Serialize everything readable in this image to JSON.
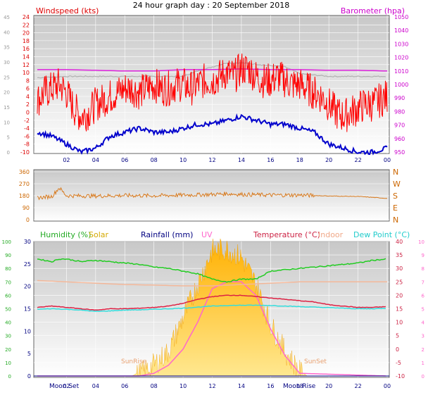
{
  "title": "24 hour graph day : 20 September 2018",
  "colors": {
    "windspeed": "#ff0000",
    "gust_avg": "#0000cc",
    "barometer": "#dd22dd",
    "bar_grey": "#b0b0b0",
    "direction": "#d87a1e",
    "humidity": "#22cc22",
    "solar": "#f0c000",
    "rainfall": "#000080",
    "uv": "#ff66cc",
    "temperature": "#dd2244",
    "indoor": "#f4b89a",
    "dewpoint": "#33dddd",
    "axis_left_wind": "#dd0000",
    "axis_right_baro": "#cc00cc"
  },
  "chart_data": [
    {
      "type": "line",
      "panel": "wind",
      "title": "",
      "legend": [
        "Windspeed (kts)",
        "Barometer (hpa)"
      ],
      "x_ticks": [
        "02",
        "04",
        "06",
        "08",
        "10",
        "12",
        "14",
        "16",
        "18",
        "20",
        "22",
        "00"
      ],
      "xlim": [
        0,
        24
      ],
      "y_left_outer_ticks": [
        "0",
        "5",
        "10",
        "15",
        "20",
        "25",
        "30",
        "35",
        "40",
        "45"
      ],
      "y_left_outer_lim": [
        0,
        45
      ],
      "y_left_ticks": [
        "-10",
        "-8",
        "-6",
        "-4",
        "-2",
        "0",
        "2",
        "4",
        "6",
        "8",
        "10",
        "12",
        "14",
        "16",
        "18",
        "20",
        "22",
        "24"
      ],
      "y_left_lim": [
        -10,
        24
      ],
      "y_right_ticks": [
        "950",
        "960",
        "970",
        "980",
        "990",
        "1000",
        "1010",
        "1020",
        "1030",
        "1040",
        "1050"
      ],
      "y_right_lim": [
        950,
        1050
      ],
      "series": [
        {
          "name": "Windspeed (kts)",
          "x": [
            0,
            0.5,
            1,
            1.5,
            2,
            2.5,
            3,
            3.5,
            4,
            4.5,
            5,
            5.5,
            6,
            6.5,
            7,
            7.5,
            8,
            8.5,
            9,
            9.5,
            10,
            10.5,
            11,
            11.5,
            12,
            12.5,
            13,
            13.5,
            14,
            14.5,
            15,
            15.5,
            16,
            16.5,
            17,
            17.5,
            18,
            18.5,
            19,
            19.5,
            20,
            20.5,
            21,
            21.5,
            22,
            22.5,
            23,
            23.5,
            24
          ],
          "values": [
            3,
            5,
            6,
            7,
            5,
            1,
            -1,
            0,
            2,
            3,
            4,
            5,
            6,
            6,
            5,
            6,
            7,
            6,
            6,
            7,
            7,
            6,
            7,
            8,
            8,
            9,
            10,
            9,
            11,
            11,
            9,
            8,
            8,
            9,
            8,
            7,
            7,
            6,
            5,
            4,
            2,
            0,
            -1,
            0,
            1,
            2,
            2,
            3,
            4
          ]
        },
        {
          "name": "Avg",
          "x": [
            0,
            1,
            2,
            3,
            4,
            5,
            6,
            7,
            8,
            9,
            10,
            11,
            12,
            13,
            14,
            15,
            16,
            17,
            18,
            19,
            20,
            21,
            22,
            23,
            24
          ],
          "values": [
            -5,
            -6,
            -8,
            -10,
            -9,
            -6,
            -5,
            -4,
            -5,
            -5,
            -4,
            -3,
            -3,
            -2,
            -1,
            -2,
            -3,
            -3,
            -4,
            -5,
            -8,
            -9,
            -10,
            -10,
            -9
          ]
        },
        {
          "name": "Barometer (hpa)",
          "x": [
            0,
            2,
            4,
            6,
            8,
            10,
            12,
            14,
            16,
            18,
            20,
            22,
            24
          ],
          "values": [
            1011,
            1011,
            1010.5,
            1010,
            1010,
            1011,
            1011,
            1011.5,
            1011,
            1011,
            1010.5,
            1010.5,
            1010
          ]
        },
        {
          "name": "",
          "x": [
            0,
            2,
            4,
            6,
            8,
            10,
            11,
            12,
            13,
            14,
            15,
            16,
            17,
            18,
            19,
            20,
            22,
            24
          ],
          "values": [
            1005,
            1006,
            1006,
            1006,
            1006,
            1006,
            1010,
            1013,
            1016,
            1016,
            1015,
            1014,
            1013,
            1008,
            1007,
            1006,
            1006,
            1006
          ]
        }
      ]
    },
    {
      "type": "line",
      "panel": "direction",
      "xlim": [
        0,
        24
      ],
      "y_left_ticks": [
        "0",
        "90",
        "180",
        "270",
        "360"
      ],
      "y_left_lim": [
        0,
        360
      ],
      "y_right_ticks": [
        "N",
        "E",
        "S",
        "W",
        "N"
      ],
      "series": [
        {
          "name": "",
          "x": [
            0,
            1,
            1.5,
            2,
            4,
            6,
            8,
            10,
            12,
            13,
            14,
            16,
            18,
            20,
            22,
            23,
            24
          ],
          "values": [
            165,
            175,
            240,
            180,
            178,
            182,
            180,
            185,
            190,
            195,
            190,
            185,
            185,
            178,
            175,
            168,
            160
          ]
        }
      ]
    },
    {
      "type": "area",
      "panel": "weather",
      "legend": [
        "Humidity (%)",
        "Solar",
        "Rainfall (mm)",
        "UV",
        "Temperature (°C)",
        "Indoor",
        "Dew Point (°C)"
      ],
      "x_ticks": [
        "02",
        "04",
        "06",
        "08",
        "10",
        "12",
        "14",
        "16",
        "18",
        "20",
        "22",
        "00"
      ],
      "xlim": [
        0,
        24
      ],
      "y_humidity_ticks": [
        "0",
        "10",
        "20",
        "30",
        "40",
        "50",
        "60",
        "70",
        "80",
        "90",
        "100"
      ],
      "y_humidity_lim": [
        0,
        100
      ],
      "y_rain_ticks": [
        "0",
        "5",
        "10",
        "15",
        "20",
        "25",
        "30"
      ],
      "y_rain_lim": [
        0,
        30
      ],
      "y_temp_ticks": [
        "-10",
        "-5",
        "0",
        "5",
        "10",
        "15",
        "20",
        "25",
        "30",
        "35",
        "40"
      ],
      "y_temp_lim": [
        -10,
        40
      ],
      "y_uv_ticks": [
        "0",
        "1",
        "2",
        "3",
        "4",
        "5",
        "6",
        "7",
        "8",
        "9",
        "10"
      ],
      "y_uv_lim": [
        0,
        10
      ],
      "annotations": [
        "Moon Set",
        "SunRise",
        "SunSet",
        "Moon Rise"
      ],
      "series": [
        {
          "name": "Humidity (%)",
          "x": [
            0,
            1,
            1.5,
            2,
            3,
            4,
            5,
            6,
            7,
            8,
            9,
            10,
            11,
            12,
            13,
            14,
            15,
            16,
            17,
            18,
            19,
            20,
            21,
            22,
            23,
            24
          ],
          "values": [
            87,
            85,
            87,
            87,
            85,
            86,
            85,
            84,
            83,
            81,
            80,
            78,
            76,
            72,
            70,
            72,
            72,
            78,
            79,
            80,
            81,
            82,
            83,
            84,
            86,
            87
          ]
        },
        {
          "name": "Indoor",
          "x": [
            0,
            2,
            4,
            6,
            8,
            10,
            12,
            14,
            16,
            18,
            20,
            22,
            24
          ],
          "values": [
            25.5,
            25,
            24.5,
            24,
            23.8,
            23.5,
            23.5,
            24,
            24.5,
            25,
            25,
            25,
            25
          ]
        },
        {
          "name": "Temperature (°C)",
          "x": [
            0,
            1,
            2,
            3,
            4,
            5,
            6,
            7,
            8,
            9,
            10,
            11,
            12,
            13,
            14,
            15,
            16,
            17,
            18,
            19,
            20,
            21,
            22,
            23,
            24
          ],
          "values": [
            15.5,
            16,
            15.5,
            15,
            14.5,
            15,
            15,
            15.2,
            15.5,
            16,
            17,
            18.5,
            19.5,
            20,
            20,
            19.5,
            19,
            18.5,
            18,
            17.5,
            16.5,
            16,
            15.5,
            15.5,
            15.8
          ]
        },
        {
          "name": "Dew Point (°C)",
          "x": [
            0,
            1,
            2,
            3,
            4,
            5,
            6,
            7,
            8,
            9,
            10,
            11,
            12,
            13,
            14,
            15,
            16,
            17,
            18,
            19,
            20,
            21,
            22,
            23,
            24
          ],
          "values": [
            14.8,
            15,
            14.8,
            14.5,
            14,
            14.2,
            14.5,
            14.6,
            14.8,
            15,
            15.2,
            15.6,
            16,
            16.2,
            16.3,
            16.3,
            16.2,
            16,
            15.8,
            15.6,
            15.4,
            15.2,
            15,
            15,
            15.2
          ]
        },
        {
          "name": "Solar",
          "x": [
            0,
            6.5,
            7,
            8,
            9,
            10,
            11,
            12,
            13,
            14,
            15,
            16,
            17,
            18,
            18.5,
            24
          ],
          "values": [
            0,
            0,
            0.3,
            1,
            2,
            4.5,
            7,
            9.5,
            9.6,
            9,
            7,
            4,
            2,
            0.5,
            0,
            0
          ]
        },
        {
          "name": "UV",
          "x": [
            0,
            7,
            8,
            9,
            10,
            11,
            12,
            13,
            14,
            15,
            16,
            17,
            18,
            24
          ],
          "values": [
            0,
            0,
            0.2,
            0.8,
            2,
            4,
            6.5,
            7,
            7,
            6,
            3.5,
            1.5,
            0.2,
            0
          ]
        },
        {
          "name": "Rainfall (mm)",
          "x": [
            0,
            24
          ],
          "values": [
            0,
            0
          ]
        }
      ]
    }
  ],
  "labels": {
    "moon_set": "Moon Set",
    "sunrise": "SunRise",
    "sunset": "SunSet",
    "moon_rise": "Moon Rise"
  }
}
